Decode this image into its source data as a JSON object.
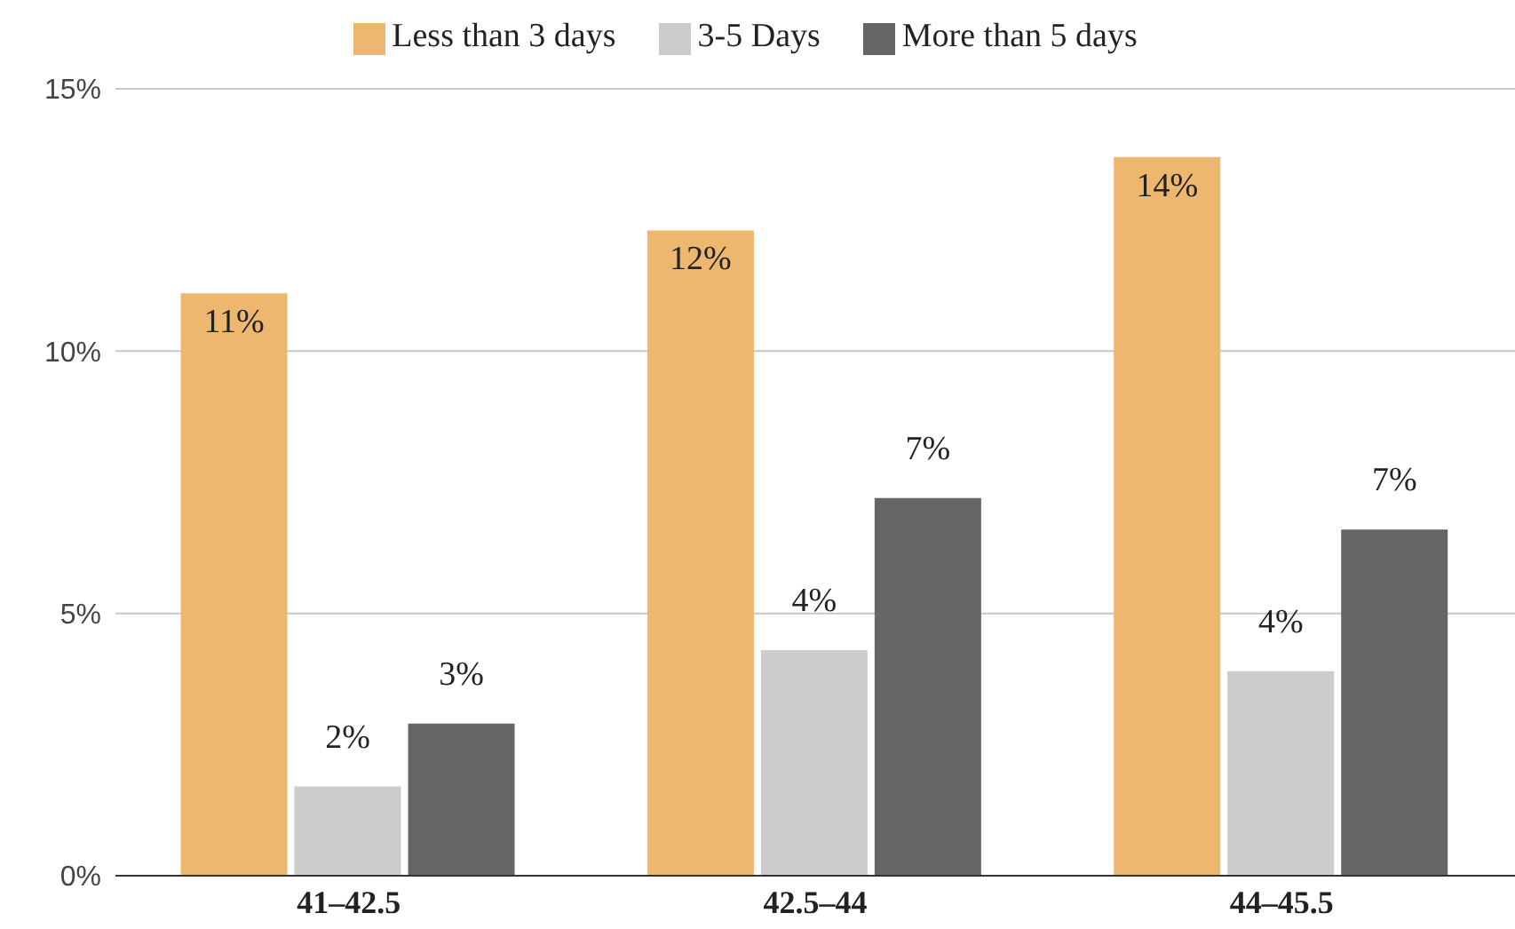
{
  "chart_data": {
    "type": "bar",
    "categories": [
      "41–42.5",
      "42.5–44",
      "44–45.5"
    ],
    "series": [
      {
        "name": "Less than 3 days",
        "color": "#eeb76f",
        "values": [
          11.1,
          12.3,
          13.7
        ],
        "value_labels": [
          "11%",
          "12%",
          "14%"
        ]
      },
      {
        "name": "3-5 Days",
        "color": "#cccccc",
        "values": [
          1.7,
          4.3,
          3.9
        ],
        "value_labels": [
          "2%",
          "4%",
          "4%"
        ]
      },
      {
        "name": "More than 5 days",
        "color": "#666666",
        "values": [
          2.9,
          7.2,
          6.6
        ],
        "value_labels": [
          "3%",
          "7%",
          "7%"
        ]
      }
    ],
    "ylim": [
      0,
      15
    ],
    "yticks": [
      {
        "value": 0,
        "label": "0%"
      },
      {
        "value": 5,
        "label": "5%"
      },
      {
        "value": 10,
        "label": "10%"
      },
      {
        "value": 15,
        "label": "15%"
      }
    ],
    "grid": "y",
    "legend": "top"
  }
}
